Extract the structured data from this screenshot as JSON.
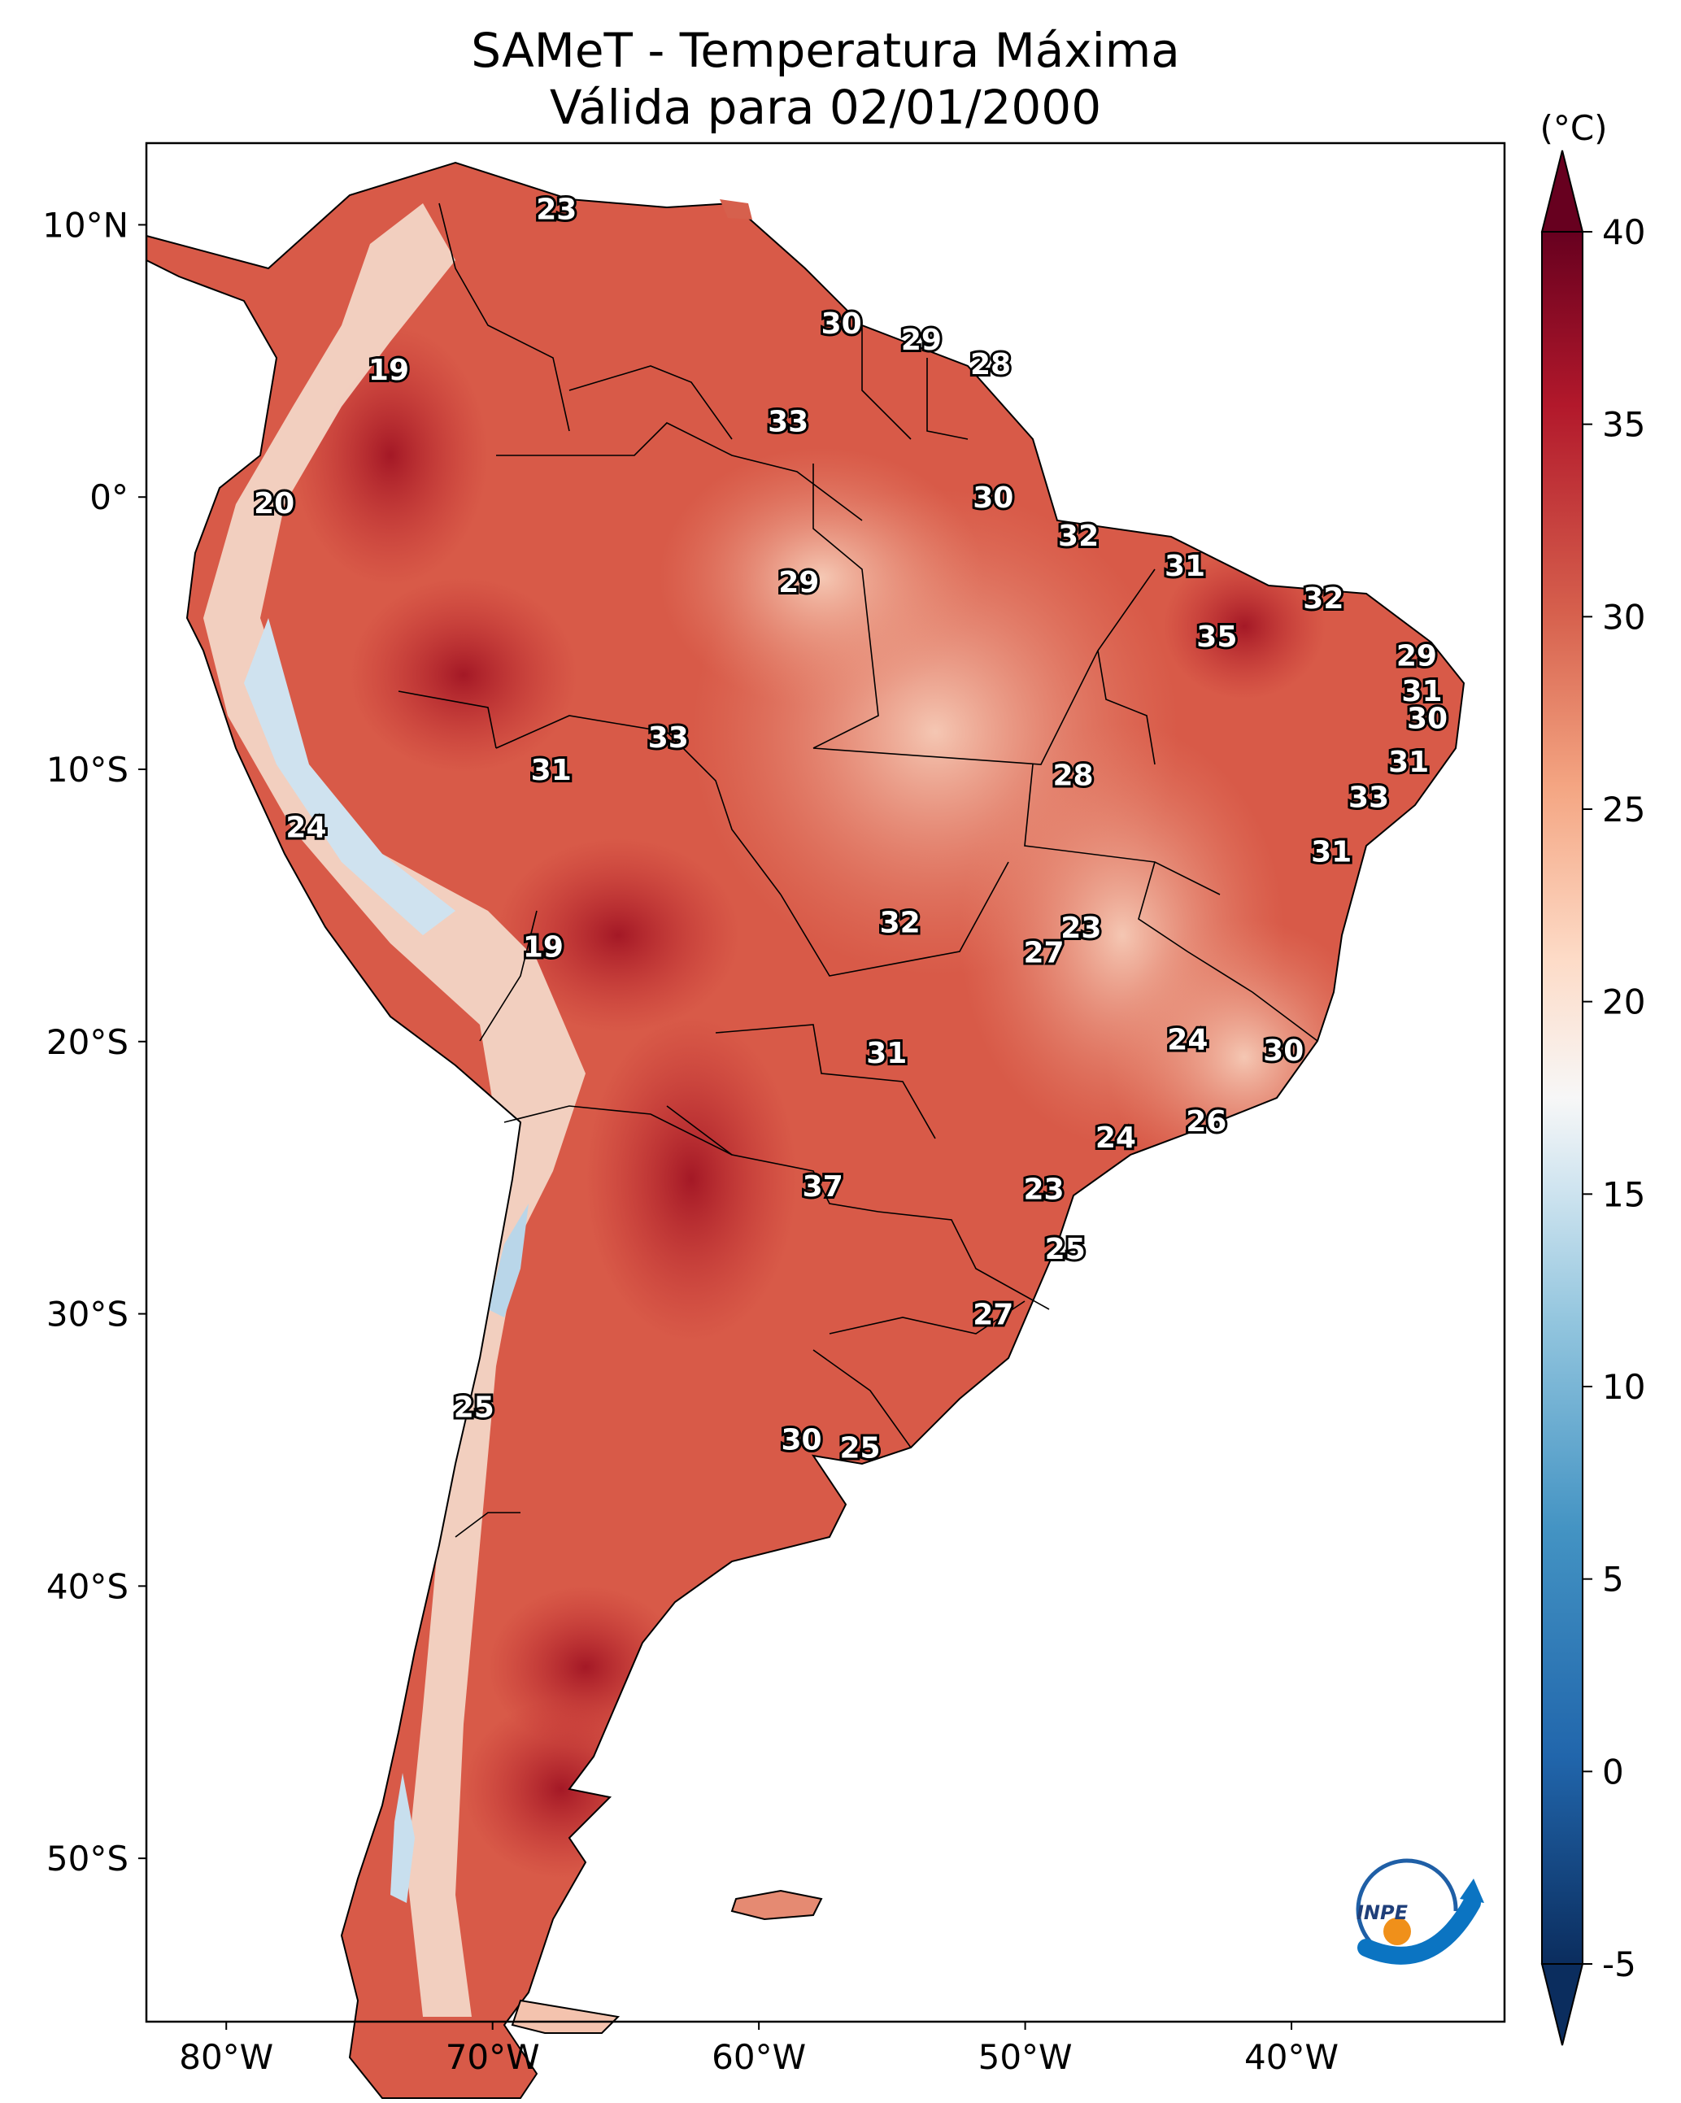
{
  "title": {
    "line1": "SAMeT - Temperatura Máxima",
    "line2": "Válida para 02/01/2000"
  },
  "map": {
    "lon_range": [
      -83,
      -32
    ],
    "lat_range": [
      -56,
      13
    ],
    "lon_ticks": [
      {
        "value": -80,
        "label": "80°W"
      },
      {
        "value": -70,
        "label": "70°W"
      },
      {
        "value": -60,
        "label": "60°W"
      },
      {
        "value": -50,
        "label": "50°W"
      },
      {
        "value": -40,
        "label": "40°W"
      }
    ],
    "lat_ticks": [
      {
        "value": 10,
        "label": "10°N"
      },
      {
        "value": 0,
        "label": "0°"
      },
      {
        "value": -10,
        "label": "10°S"
      },
      {
        "value": -20,
        "label": "20°S"
      },
      {
        "value": -30,
        "label": "30°S"
      },
      {
        "value": -40,
        "label": "40°S"
      },
      {
        "value": -50,
        "label": "50°S"
      }
    ],
    "city_labels": [
      {
        "lon": -67.6,
        "lat": 10.6,
        "value": "23"
      },
      {
        "lon": -56.9,
        "lat": 6.4,
        "value": "30"
      },
      {
        "lon": -53.9,
        "lat": 5.8,
        "value": "29"
      },
      {
        "lon": -51.3,
        "lat": 4.9,
        "value": "28"
      },
      {
        "lon": -73.9,
        "lat": 4.7,
        "value": "19"
      },
      {
        "lon": -58.9,
        "lat": 2.8,
        "value": "33"
      },
      {
        "lon": -51.2,
        "lat": 0.0,
        "value": "30"
      },
      {
        "lon": -78.2,
        "lat": -0.2,
        "value": "20"
      },
      {
        "lon": -48.0,
        "lat": -1.4,
        "value": "32"
      },
      {
        "lon": -44.0,
        "lat": -2.5,
        "value": "31"
      },
      {
        "lon": -58.5,
        "lat": -3.1,
        "value": "29"
      },
      {
        "lon": -38.8,
        "lat": -3.7,
        "value": "32"
      },
      {
        "lon": -42.8,
        "lat": -5.1,
        "value": "35"
      },
      {
        "lon": -35.3,
        "lat": -5.8,
        "value": "29"
      },
      {
        "lon": -35.1,
        "lat": -7.1,
        "value": "31"
      },
      {
        "lon": -34.9,
        "lat": -8.1,
        "value": "30"
      },
      {
        "lon": -63.4,
        "lat": -8.8,
        "value": "33"
      },
      {
        "lon": -35.6,
        "lat": -9.7,
        "value": "31"
      },
      {
        "lon": -67.8,
        "lat": -10.0,
        "value": "31"
      },
      {
        "lon": -48.2,
        "lat": -10.2,
        "value": "28"
      },
      {
        "lon": -37.1,
        "lat": -11.0,
        "value": "33"
      },
      {
        "lon": -77.0,
        "lat": -12.1,
        "value": "24"
      },
      {
        "lon": -38.5,
        "lat": -13.0,
        "value": "31"
      },
      {
        "lon": -54.7,
        "lat": -15.6,
        "value": "32"
      },
      {
        "lon": -47.9,
        "lat": -15.8,
        "value": "23"
      },
      {
        "lon": -49.3,
        "lat": -16.7,
        "value": "27"
      },
      {
        "lon": -68.1,
        "lat": -16.5,
        "value": "19"
      },
      {
        "lon": -43.9,
        "lat": -19.9,
        "value": "24"
      },
      {
        "lon": -40.3,
        "lat": -20.3,
        "value": "30"
      },
      {
        "lon": -55.2,
        "lat": -20.4,
        "value": "31"
      },
      {
        "lon": -43.2,
        "lat": -22.9,
        "value": "26"
      },
      {
        "lon": -46.6,
        "lat": -23.5,
        "value": "24"
      },
      {
        "lon": -57.6,
        "lat": -25.3,
        "value": "37"
      },
      {
        "lon": -49.3,
        "lat": -25.4,
        "value": "23"
      },
      {
        "lon": -48.5,
        "lat": -27.6,
        "value": "25"
      },
      {
        "lon": -51.2,
        "lat": -30.0,
        "value": "27"
      },
      {
        "lon": -70.7,
        "lat": -33.4,
        "value": "25"
      },
      {
        "lon": -58.4,
        "lat": -34.6,
        "value": "30"
      },
      {
        "lon": -56.2,
        "lat": -34.9,
        "value": "25"
      }
    ]
  },
  "colorbar": {
    "unit": "(°C)",
    "min": -5,
    "max": 40,
    "ticks": [
      {
        "value": 40,
        "label": "40"
      },
      {
        "value": 35,
        "label": "35"
      },
      {
        "value": 30,
        "label": "30"
      },
      {
        "value": 25,
        "label": "25"
      },
      {
        "value": 20,
        "label": "20"
      },
      {
        "value": 15,
        "label": "15"
      },
      {
        "value": 10,
        "label": "10"
      },
      {
        "value": 5,
        "label": "5"
      },
      {
        "value": 0,
        "label": "0"
      },
      {
        "value": -5,
        "label": "-5"
      }
    ]
  },
  "logo": {
    "text": "INPE"
  }
}
